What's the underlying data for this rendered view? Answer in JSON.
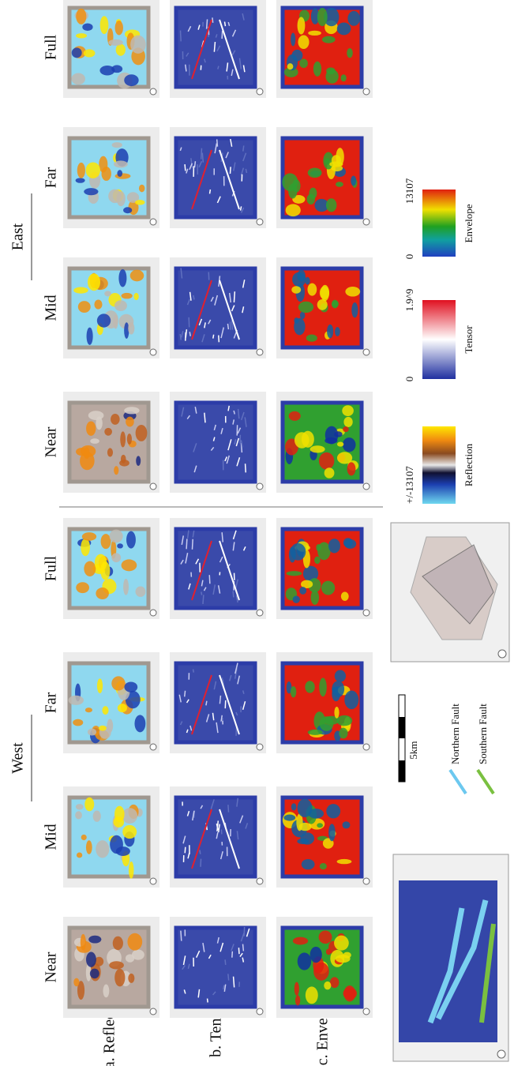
{
  "figure": {
    "groups": [
      "West",
      "East"
    ],
    "columns": [
      "Near",
      "Mid",
      "Far",
      "Full"
    ],
    "rows": [
      "a. Reflection",
      "b. Tensor",
      "c. Envelope"
    ],
    "scale_bar": "5km",
    "faults": [
      "Northern Fault",
      "Southern Fault"
    ],
    "colorbars": [
      {
        "label": "Reflection",
        "min": "+/-13107"
      },
      {
        "label": "Tensor",
        "min": "0",
        "max": "1.9^9"
      },
      {
        "label": "Envelope",
        "min": "0",
        "max": "13107"
      }
    ]
  }
}
